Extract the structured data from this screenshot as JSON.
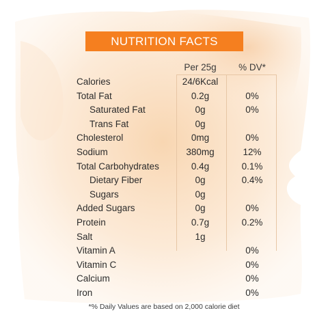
{
  "title": "NUTRITION FACTS",
  "colors": {
    "banner": "#f57f1f",
    "wash": "#f9d9b6",
    "grid": "#e7c6a5",
    "text": "#2b2b2b"
  },
  "header": {
    "per": "Per 25g",
    "dv": "% DV*"
  },
  "rows": [
    {
      "name": "Calories",
      "per": "24/6Kcal",
      "dv": ""
    },
    {
      "name": "Total Fat",
      "per": "0.2g",
      "dv": "0%"
    },
    {
      "name": "Saturated Fat",
      "per": "0g",
      "dv": "0%"
    },
    {
      "name": "Trans Fat",
      "per": "0g",
      "dv": ""
    },
    {
      "name": "Cholesterol",
      "per": "0mg",
      "dv": "0%"
    },
    {
      "name": "Sodium",
      "per": "380mg",
      "dv": "12%"
    },
    {
      "name": "Total Carbohydrates",
      "per": "0.4g",
      "dv": "0.1%"
    },
    {
      "name": "Dietary Fiber",
      "per": "0g",
      "dv": "0.4%"
    },
    {
      "name": "Sugars",
      "per": "0g",
      "dv": ""
    },
    {
      "name": "Added Sugars",
      "per": "0g",
      "dv": "0%"
    },
    {
      "name": "Protein",
      "per": "0.7g",
      "dv": "0.2%"
    },
    {
      "name": "Salt",
      "per": "1g",
      "dv": ""
    },
    {
      "name": "Vitamin A",
      "per": "",
      "dv": "0%"
    },
    {
      "name": "Vitamin C",
      "per": "",
      "dv": "0%"
    },
    {
      "name": "Calcium",
      "per": "",
      "dv": "0%"
    },
    {
      "name": "Iron",
      "per": "",
      "dv": "0%"
    }
  ],
  "footnote": "*% Daily Values are based on 2,000 calorie diet"
}
